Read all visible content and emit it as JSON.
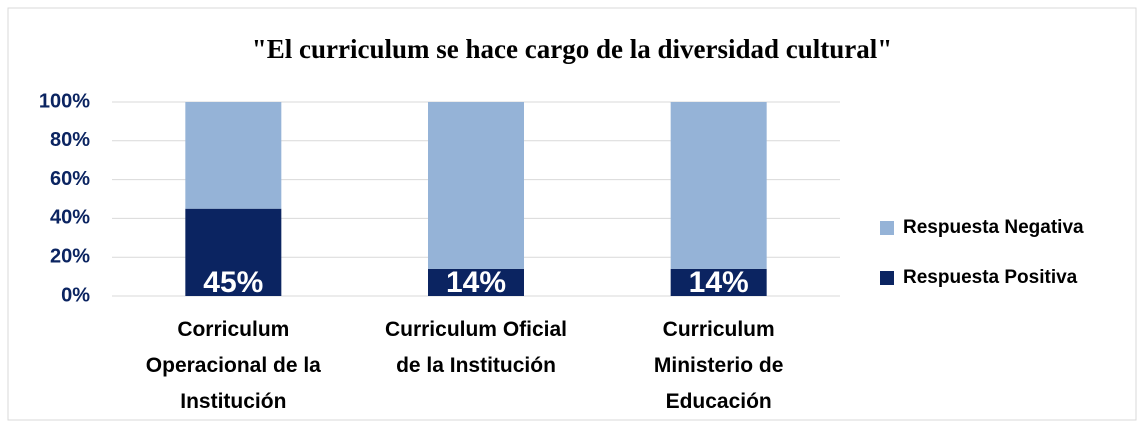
{
  "chart_data": {
    "type": "stacked_bar",
    "title": "\"El curriculum se hace cargo de la diversidad cultural\"",
    "categories": [
      "Corriculum Operacional de la Institución",
      "Curriculum Oficial de la Institución",
      "Curriculum Ministerio de Educación"
    ],
    "series": [
      {
        "name": "Respuesta Positiva",
        "color": "#0b2461",
        "values": [
          45,
          14,
          14
        ],
        "value_labels": [
          "45%",
          "14%",
          "14%"
        ]
      },
      {
        "name": "Respuesta Negativa",
        "color": "#95b3d7",
        "values": [
          55,
          86,
          86
        ]
      }
    ],
    "ylim": [
      0,
      100
    ],
    "yticks": [
      {
        "value": 0,
        "label": "0%"
      },
      {
        "value": 20,
        "label": "20%"
      },
      {
        "value": 40,
        "label": "40%"
      },
      {
        "value": 60,
        "label": "60%"
      },
      {
        "value": 80,
        "label": "80%"
      },
      {
        "value": 100,
        "label": "100%"
      }
    ],
    "grid": true,
    "legend": "right"
  }
}
